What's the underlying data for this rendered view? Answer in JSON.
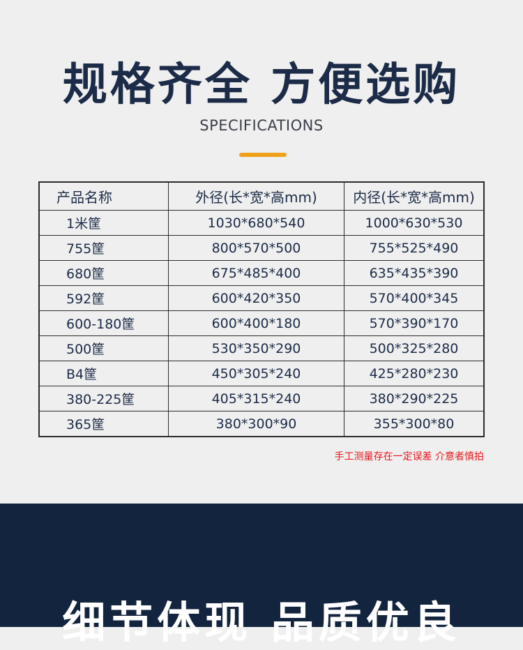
{
  "header": {
    "title": "规格齐全 方便选购",
    "subtitle": "SPECIFICATIONS",
    "accent_color": "#f0a11c"
  },
  "table": {
    "columns": [
      "产品名称",
      "外径(长*宽*高mm)",
      "内径(长*宽*高mm)"
    ],
    "rows": [
      [
        "1米筐",
        "1030*680*540",
        "1000*630*530"
      ],
      [
        "755筐",
        "800*570*500",
        "755*525*490"
      ],
      [
        "680筐",
        "675*485*400",
        "635*435*390"
      ],
      [
        "592筐",
        "600*420*350",
        "570*400*345"
      ],
      [
        "600-180筐",
        "600*400*180",
        "570*390*170"
      ],
      [
        "500筐",
        "530*350*290",
        "500*325*280"
      ],
      [
        "B4筐",
        "450*305*240",
        "425*280*230"
      ],
      [
        "380-225筐",
        "405*315*240",
        "380*290*225"
      ],
      [
        "365筐",
        "380*300*90",
        "355*300*80"
      ]
    ]
  },
  "note": "手工测量存在一定误差 介意者慎拍",
  "footer": {
    "title": "细节体现 品质优良",
    "background": "#13243f"
  }
}
